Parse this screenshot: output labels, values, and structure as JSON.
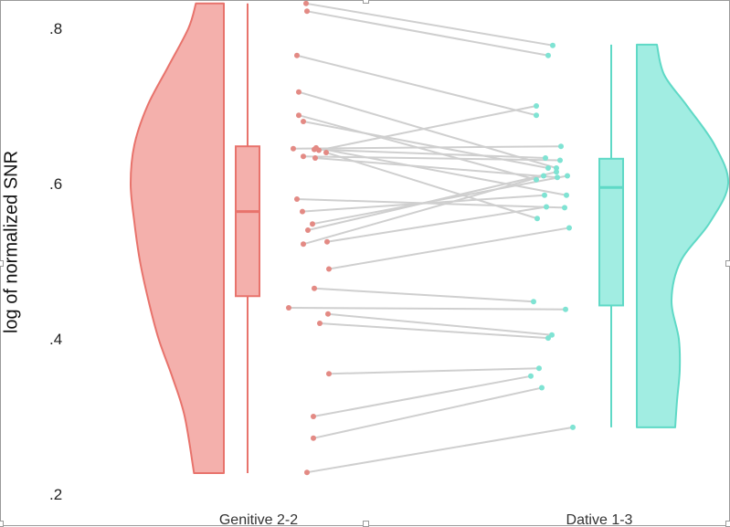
{
  "chart_data": {
    "type": "raincloud",
    "title": "",
    "ylabel": "log of normalized SNR",
    "xlabel": "",
    "ylim": [
      0.19,
      0.84
    ],
    "yticks": [
      0.2,
      0.4,
      0.6,
      0.8
    ],
    "ytick_labels": [
      ".2",
      ".4",
      ".6",
      ".8"
    ],
    "grid": false,
    "categories": [
      "Genitive 2-2",
      "Dative 1-3"
    ],
    "colors": {
      "genitive_line": "#e8736c",
      "genitive_fill": "#f4b0ac",
      "genitive_point": "#e38a84",
      "dative_line": "#5fd9c6",
      "dative_fill": "#a1ede2",
      "dative_point": "#7fe3d3",
      "pair_line": "#cfcfcf"
    },
    "box": {
      "genitive": {
        "whisker_low": 0.227,
        "q1": 0.455,
        "median": 0.564,
        "q3": 0.648,
        "whisker_high": 0.832
      },
      "dative": {
        "whisker_low": 0.286,
        "q1": 0.443,
        "median": 0.595,
        "q3": 0.632,
        "whisker_high": 0.779
      }
    },
    "density": {
      "genitive": {
        "y": [
          0.227,
          0.3,
          0.35,
          0.4,
          0.45,
          0.5,
          0.55,
          0.6,
          0.65,
          0.7,
          0.75,
          0.8,
          0.832
        ],
        "d": [
          0.32,
          0.42,
          0.55,
          0.7,
          0.81,
          0.9,
          0.96,
          1.0,
          0.96,
          0.82,
          0.6,
          0.38,
          0.3
        ]
      },
      "dative": {
        "y": [
          0.286,
          0.32,
          0.36,
          0.4,
          0.45,
          0.5,
          0.55,
          0.6,
          0.65,
          0.7,
          0.74,
          0.779
        ],
        "d": [
          0.42,
          0.44,
          0.47,
          0.46,
          0.38,
          0.48,
          0.8,
          1.0,
          0.85,
          0.55,
          0.3,
          0.22
        ]
      }
    },
    "pairs": [
      {
        "genitive": 0.832,
        "dative": 0.778
      },
      {
        "genitive": 0.822,
        "dative": 0.765
      },
      {
        "genitive": 0.765,
        "dative": 0.688
      },
      {
        "genitive": 0.718,
        "dative": 0.62
      },
      {
        "genitive": 0.688,
        "dative": 0.605
      },
      {
        "genitive": 0.68,
        "dative": 0.62
      },
      {
        "genitive": 0.646,
        "dative": 0.585
      },
      {
        "genitive": 0.645,
        "dative": 0.648
      },
      {
        "genitive": 0.643,
        "dative": 0.7
      },
      {
        "genitive": 0.644,
        "dative": 0.633
      },
      {
        "genitive": 0.64,
        "dative": 0.555
      },
      {
        "genitive": 0.635,
        "dative": 0.63
      },
      {
        "genitive": 0.633,
        "dative": 0.608
      },
      {
        "genitive": 0.58,
        "dative": 0.569
      },
      {
        "genitive": 0.564,
        "dative": 0.585
      },
      {
        "genitive": 0.548,
        "dative": 0.61
      },
      {
        "genitive": 0.54,
        "dative": 0.615
      },
      {
        "genitive": 0.522,
        "dative": 0.61
      },
      {
        "genitive": 0.525,
        "dative": 0.57
      },
      {
        "genitive": 0.49,
        "dative": 0.543
      },
      {
        "genitive": 0.465,
        "dative": 0.448
      },
      {
        "genitive": 0.44,
        "dative": 0.438
      },
      {
        "genitive": 0.432,
        "dative": 0.405
      },
      {
        "genitive": 0.42,
        "dative": 0.401
      },
      {
        "genitive": 0.355,
        "dative": 0.362
      },
      {
        "genitive": 0.3,
        "dative": 0.352
      },
      {
        "genitive": 0.272,
        "dative": 0.337
      },
      {
        "genitive": 0.228,
        "dative": 0.286
      }
    ]
  }
}
